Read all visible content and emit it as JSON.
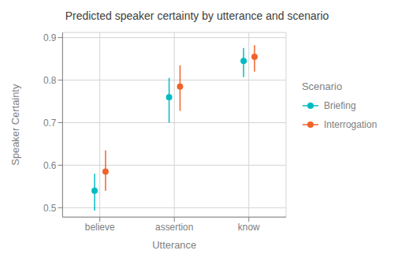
{
  "chart_data": {
    "type": "errorbar",
    "title": "Predicted speaker certainty by utterance and scenario",
    "x_label": "Utterance",
    "y_label": "Speaker Certainty",
    "categories": [
      "believe",
      "assertion",
      "know"
    ],
    "series": [
      {
        "name": "Briefing",
        "color": "#00BCC2",
        "values": [
          0.54,
          0.76,
          0.845
        ],
        "lower": [
          0.493,
          0.7,
          0.807
        ],
        "upper": [
          0.58,
          0.805,
          0.875
        ]
      },
      {
        "name": "Interrogation",
        "color": "#F0622A",
        "values": [
          0.585,
          0.785,
          0.855
        ],
        "lower": [
          0.54,
          0.728,
          0.82
        ],
        "upper": [
          0.635,
          0.835,
          0.882
        ]
      }
    ],
    "ylim": [
      0.478,
      0.912
    ],
    "yticks": [
      0.5,
      0.6,
      0.7,
      0.8,
      0.9
    ],
    "grid": true,
    "legend": "right",
    "legend_title": "Scenario",
    "marker": "circle"
  }
}
